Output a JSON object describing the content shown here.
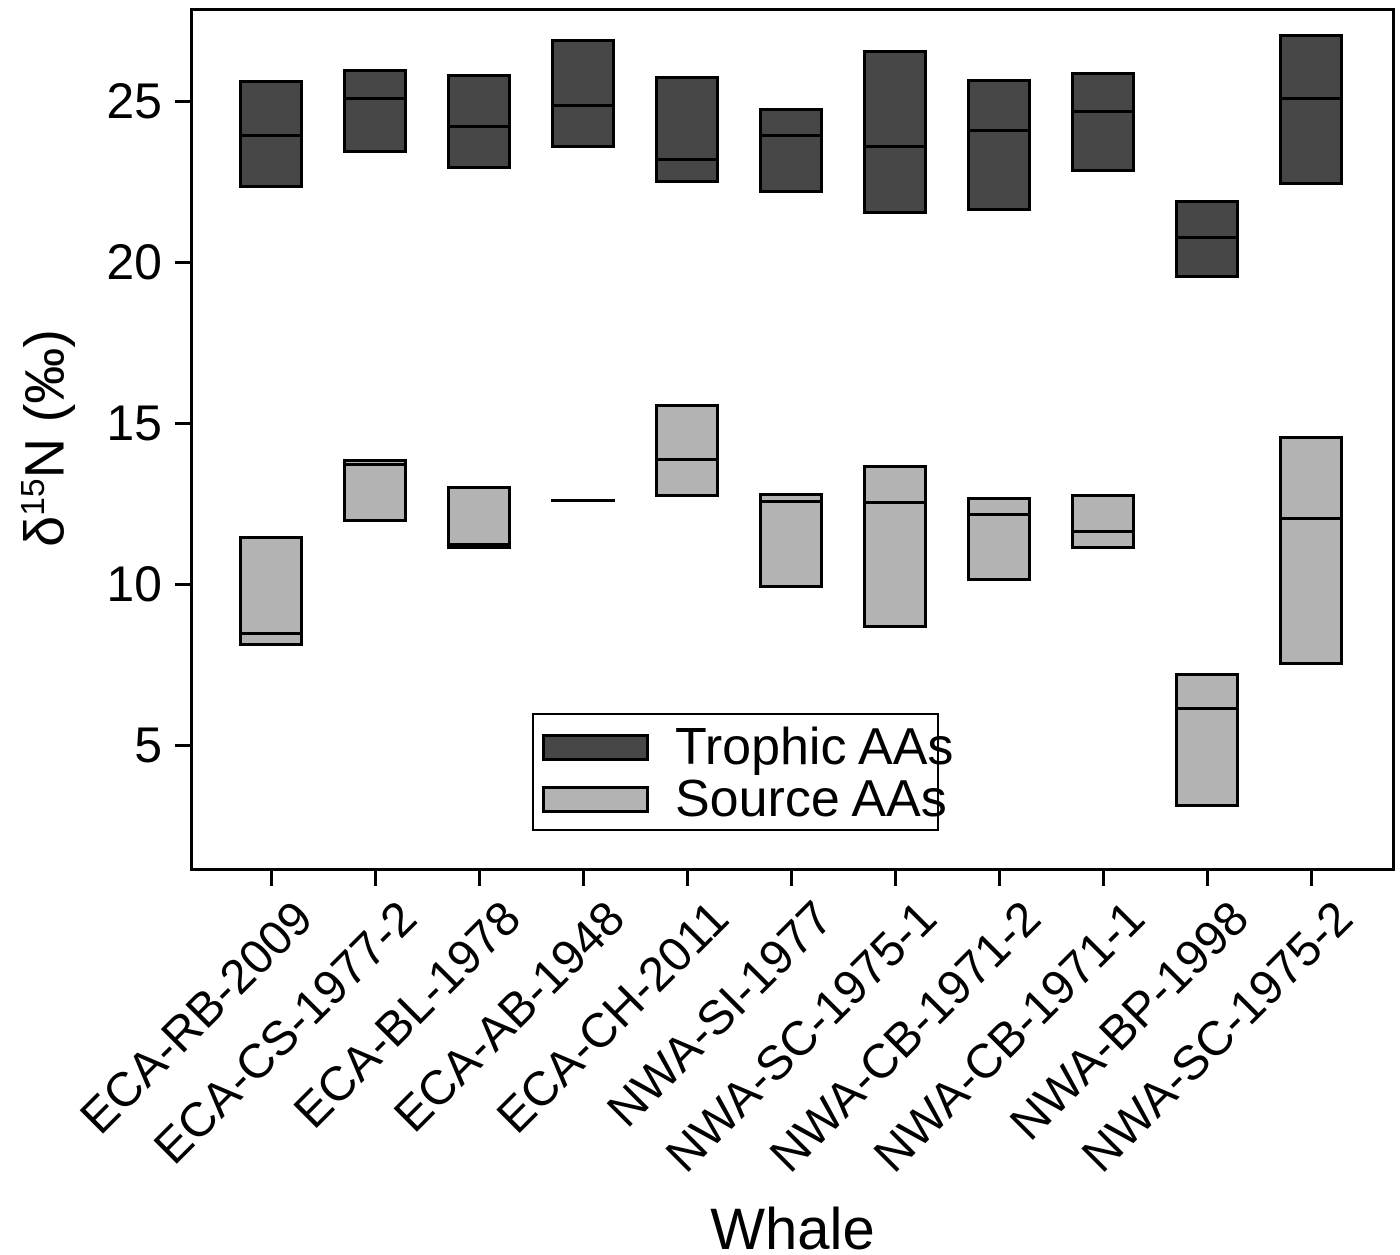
{
  "chart_data": {
    "type": "boxplot",
    "title": "",
    "xlabel": "Whale",
    "ylabel_delta": "δ",
    "ylabel_sup": "15",
    "ylabel_rest": "N (‰)",
    "ylim": [
      1.1,
      27.9
    ],
    "yticks": [
      5,
      10,
      15,
      20,
      25
    ],
    "grid": false,
    "legend_position": "inside lower-left",
    "categories": [
      "ECA-RB-2009",
      "ECA-CS-1977-2",
      "ECA-BL-1978",
      "ECA-AB-1948",
      "ECA-CH-2011",
      "NWA-SI-1977",
      "NWA-SC-1975-1",
      "NWA-CB-1971-2",
      "NWA-CB-1971-1",
      "NWA-BP-1998",
      "NWA-SC-1975-2"
    ],
    "series": [
      {
        "name": "Trophic AAs",
        "color": "#474747",
        "boxes": [
          {
            "q1": 22.3,
            "median": 23.95,
            "q3": 25.65
          },
          {
            "q1": 23.4,
            "median": 25.1,
            "q3": 26.0
          },
          {
            "q1": 22.9,
            "median": 24.25,
            "q3": 25.85
          },
          {
            "q1": 23.55,
            "median": 24.9,
            "q3": 26.95
          },
          {
            "q1": 22.45,
            "median": 23.2,
            "q3": 25.8
          },
          {
            "q1": 22.15,
            "median": 23.95,
            "q3": 24.8
          },
          {
            "q1": 21.5,
            "median": 23.6,
            "q3": 26.6
          },
          {
            "q1": 21.6,
            "median": 24.1,
            "q3": 25.7
          },
          {
            "q1": 22.8,
            "median": 24.7,
            "q3": 25.9
          },
          {
            "q1": 19.5,
            "median": 20.8,
            "q3": 21.95
          },
          {
            "q1": 22.4,
            "median": 25.1,
            "q3": 27.1
          }
        ]
      },
      {
        "name": "Source AAs",
        "color": "#b3b3b3",
        "boxes": [
          {
            "q1": 8.1,
            "median": 8.5,
            "q3": 11.5
          },
          {
            "q1": 11.95,
            "median": 13.75,
            "q3": 13.9
          },
          {
            "q1": 11.1,
            "median": 11.25,
            "q3": 13.05
          },
          {
            "q1": 12.65,
            "median": 12.65,
            "q3": 12.65
          },
          {
            "q1": 12.7,
            "median": 13.9,
            "q3": 15.6
          },
          {
            "q1": 9.9,
            "median": 12.6,
            "q3": 12.85
          },
          {
            "q1": 8.65,
            "median": 12.55,
            "q3": 13.7
          },
          {
            "q1": 10.1,
            "median": 12.2,
            "q3": 12.7
          },
          {
            "q1": 11.1,
            "median": 11.65,
            "q3": 12.8
          },
          {
            "q1": 3.1,
            "median": 6.15,
            "q3": 7.25
          },
          {
            "q1": 7.5,
            "median": 12.05,
            "q3": 14.6
          }
        ]
      }
    ]
  }
}
